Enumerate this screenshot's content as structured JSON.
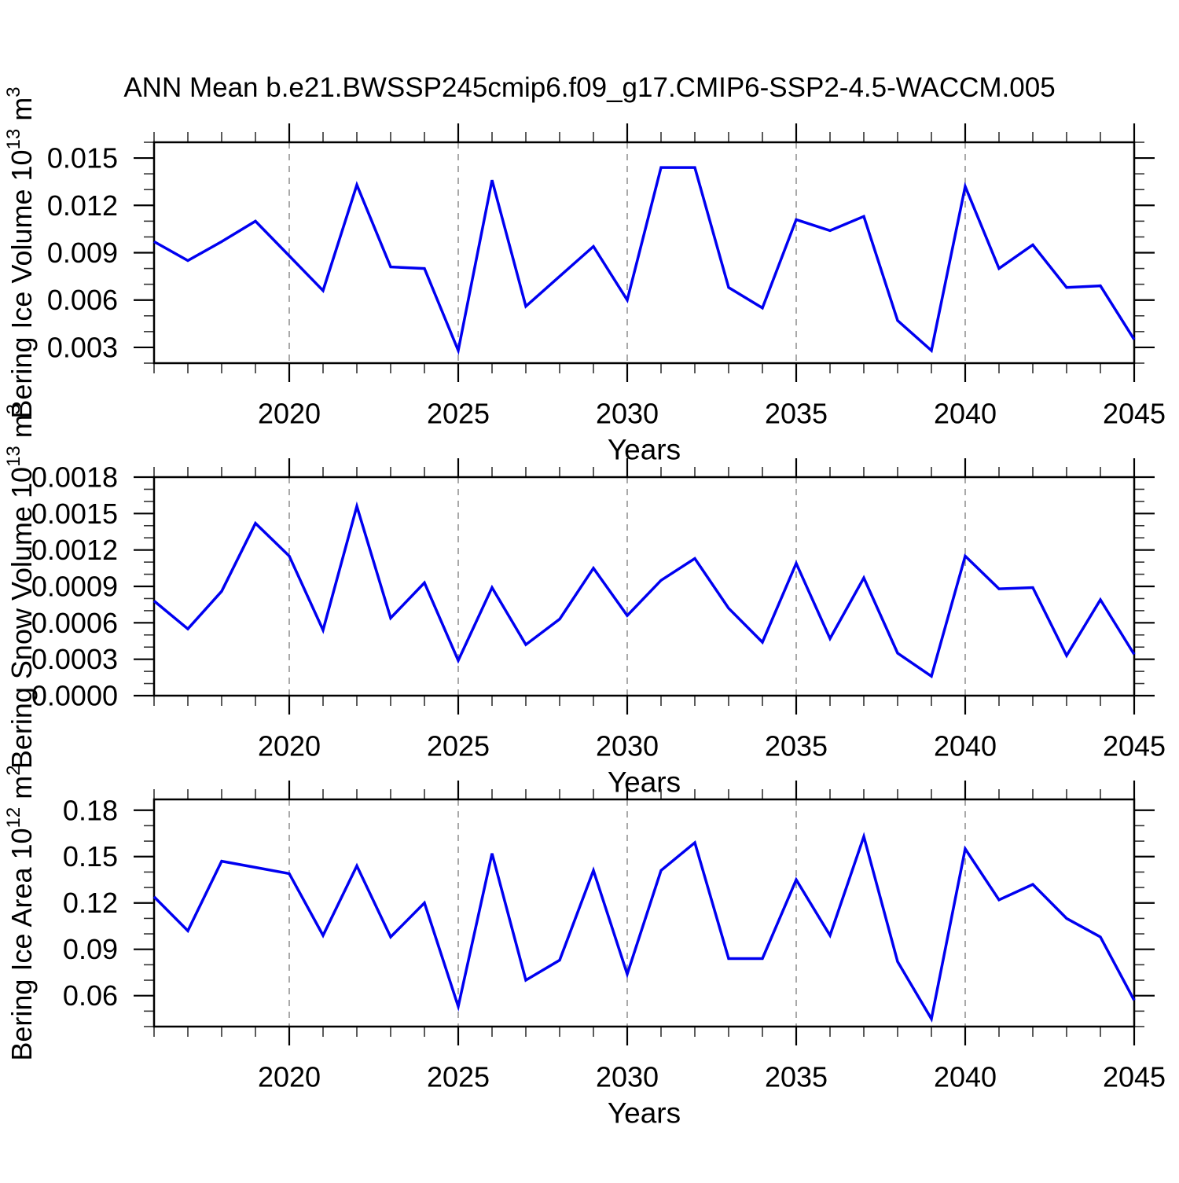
{
  "title": "ANN Mean b.e21.BWSSP245cmip6.f09_g17.CMIP6-SSP2-4.5-WACCM.005",
  "colors": {
    "line": "#0000f0",
    "grid": "#848484",
    "axis": "#000000",
    "minor_tick": "#333333"
  },
  "chart_data": [
    {
      "id": "bering-ice-volume",
      "type": "line",
      "ylabel_parts": [
        {
          "t": "Bering Ice Volume 10"
        },
        {
          "t": "13",
          "sup": true
        },
        {
          "t": " m"
        },
        {
          "t": "3",
          "sup": true
        }
      ],
      "xlabel": "Years",
      "xlim": [
        2016,
        2045
      ],
      "ylim": [
        0.002,
        0.016
      ],
      "x_ticks": {
        "major": [
          2020,
          2025,
          2030,
          2035,
          2040,
          2045
        ],
        "labels": [
          "2020",
          "2025",
          "2030",
          "2035",
          "2040",
          "2045"
        ],
        "minor_step": 1,
        "grid": [
          2020,
          2025,
          2030,
          2035,
          2040
        ]
      },
      "y_ticks": {
        "values": [
          0.003,
          0.006,
          0.009,
          0.012,
          0.015
        ],
        "labels": [
          "0.003",
          "0.006",
          "0.009",
          "0.012",
          "0.015"
        ],
        "minor_step": 0.001
      },
      "x": [
        2016,
        2017,
        2018,
        2019,
        2020,
        2021,
        2022,
        2023,
        2024,
        2025,
        2026,
        2027,
        2028,
        2029,
        2030,
        2031,
        2032,
        2033,
        2034,
        2035,
        2036,
        2037,
        2038,
        2039,
        2040,
        2041,
        2042,
        2043,
        2044,
        2045
      ],
      "values": [
        0.0097,
        0.0085,
        0.0097,
        0.011,
        0.0088,
        0.0066,
        0.0133,
        0.0081,
        0.008,
        0.0028,
        0.0136,
        0.0056,
        0.0075,
        0.0094,
        0.006,
        0.0144,
        0.0144,
        0.0068,
        0.0055,
        0.0111,
        0.0104,
        0.0113,
        0.0047,
        0.0028,
        0.0132,
        0.008,
        0.0095,
        0.0068,
        0.0069,
        0.0035
      ]
    },
    {
      "id": "bering-snow-volume",
      "type": "line",
      "ylabel_parts": [
        {
          "t": "Bering Snow Volume 10"
        },
        {
          "t": "13",
          "sup": true
        },
        {
          "t": " m"
        },
        {
          "t": "3",
          "sup": true
        }
      ],
      "xlabel": "Years",
      "xlim": [
        2016,
        2045
      ],
      "ylim": [
        0.0,
        0.0018
      ],
      "x_ticks": {
        "major": [
          2020,
          2025,
          2030,
          2035,
          2040,
          2045
        ],
        "labels": [
          "2020",
          "2025",
          "2030",
          "2035",
          "2040",
          "2045"
        ],
        "minor_step": 1,
        "grid": [
          2020,
          2025,
          2030,
          2035,
          2040
        ]
      },
      "y_ticks": {
        "values": [
          0.0,
          0.0003,
          0.0006,
          0.0009,
          0.0012,
          0.0015,
          0.0018
        ],
        "labels": [
          "0.0000",
          "0.0003",
          "0.0006",
          "0.0009",
          "0.0012",
          "0.0015",
          "0.0018"
        ],
        "minor_step": 0.0001
      },
      "x": [
        2016,
        2017,
        2018,
        2019,
        2020,
        2021,
        2022,
        2023,
        2024,
        2025,
        2026,
        2027,
        2028,
        2029,
        2030,
        2031,
        2032,
        2033,
        2034,
        2035,
        2036,
        2037,
        2038,
        2039,
        2040,
        2041,
        2042,
        2043,
        2044,
        2045
      ],
      "values": [
        0.00078,
        0.00055,
        0.00086,
        0.00142,
        0.00115,
        0.00054,
        0.00156,
        0.00064,
        0.00093,
        0.00029,
        0.00089,
        0.00042,
        0.00063,
        0.00105,
        0.00066,
        0.00095,
        0.00113,
        0.00072,
        0.00044,
        0.00109,
        0.00047,
        0.00097,
        0.00035,
        0.00016,
        0.00115,
        0.00088,
        0.00089,
        0.00033,
        0.00079,
        0.00034
      ]
    },
    {
      "id": "bering-ice-area",
      "type": "line",
      "ylabel_parts": [
        {
          "t": "Bering Ice Area 10"
        },
        {
          "t": "12",
          "sup": true
        },
        {
          "t": " m"
        },
        {
          "t": "2",
          "sup": true
        }
      ],
      "xlabel": "Years",
      "xlim": [
        2016,
        2045
      ],
      "ylim": [
        0.04,
        0.187
      ],
      "x_ticks": {
        "major": [
          2020,
          2025,
          2030,
          2035,
          2040,
          2045
        ],
        "labels": [
          "2020",
          "2025",
          "2030",
          "2035",
          "2040",
          "2045"
        ],
        "minor_step": 1,
        "grid": [
          2020,
          2025,
          2030,
          2035,
          2040
        ]
      },
      "y_ticks": {
        "values": [
          0.06,
          0.09,
          0.12,
          0.15,
          0.18
        ],
        "labels": [
          "0.06",
          "0.09",
          "0.12",
          "0.15",
          "0.18"
        ],
        "minor_step": 0.01
      },
      "x": [
        2016,
        2017,
        2018,
        2019,
        2020,
        2021,
        2022,
        2023,
        2024,
        2025,
        2026,
        2027,
        2028,
        2029,
        2030,
        2031,
        2032,
        2033,
        2034,
        2035,
        2036,
        2037,
        2038,
        2039,
        2040,
        2041,
        2042,
        2043,
        2044,
        2045
      ],
      "values": [
        0.124,
        0.102,
        0.147,
        0.143,
        0.139,
        0.099,
        0.144,
        0.098,
        0.12,
        0.053,
        0.152,
        0.07,
        0.083,
        0.141,
        0.074,
        0.141,
        0.159,
        0.084,
        0.084,
        0.135,
        0.099,
        0.163,
        0.082,
        0.045,
        0.155,
        0.122,
        0.132,
        0.11,
        0.098,
        0.057
      ]
    }
  ]
}
